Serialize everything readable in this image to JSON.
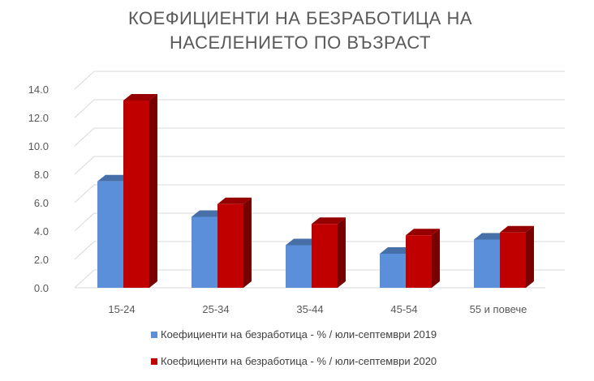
{
  "chart_data": {
    "type": "bar",
    "title": "КОЕФИЦИЕНТИ НА БЕЗРАБОТИЦА НА НАСЕЛЕНИЕТО ПО ВЪЗРАСТ",
    "categories": [
      "15-24",
      "25-34",
      "35-44",
      "45-54",
      "55 и повече"
    ],
    "series": [
      {
        "name": "Коефициенти на безработица - % / юли-септември 2019",
        "color": "#5b8fd9",
        "values": [
          7.5,
          5.0,
          3.0,
          2.4,
          3.4
        ]
      },
      {
        "name": "Коефициенти на безработица - % / юли-септември 2020",
        "color": "#c00000",
        "values": [
          13.2,
          5.9,
          4.5,
          3.7,
          3.9
        ]
      }
    ],
    "yticks": [
      "0.0",
      "2.0",
      "4.0",
      "6.0",
      "8.0",
      "10.0",
      "12.0",
      "14.0"
    ],
    "ylim": [
      0,
      14
    ],
    "grid": true,
    "legend_position": "bottom"
  }
}
